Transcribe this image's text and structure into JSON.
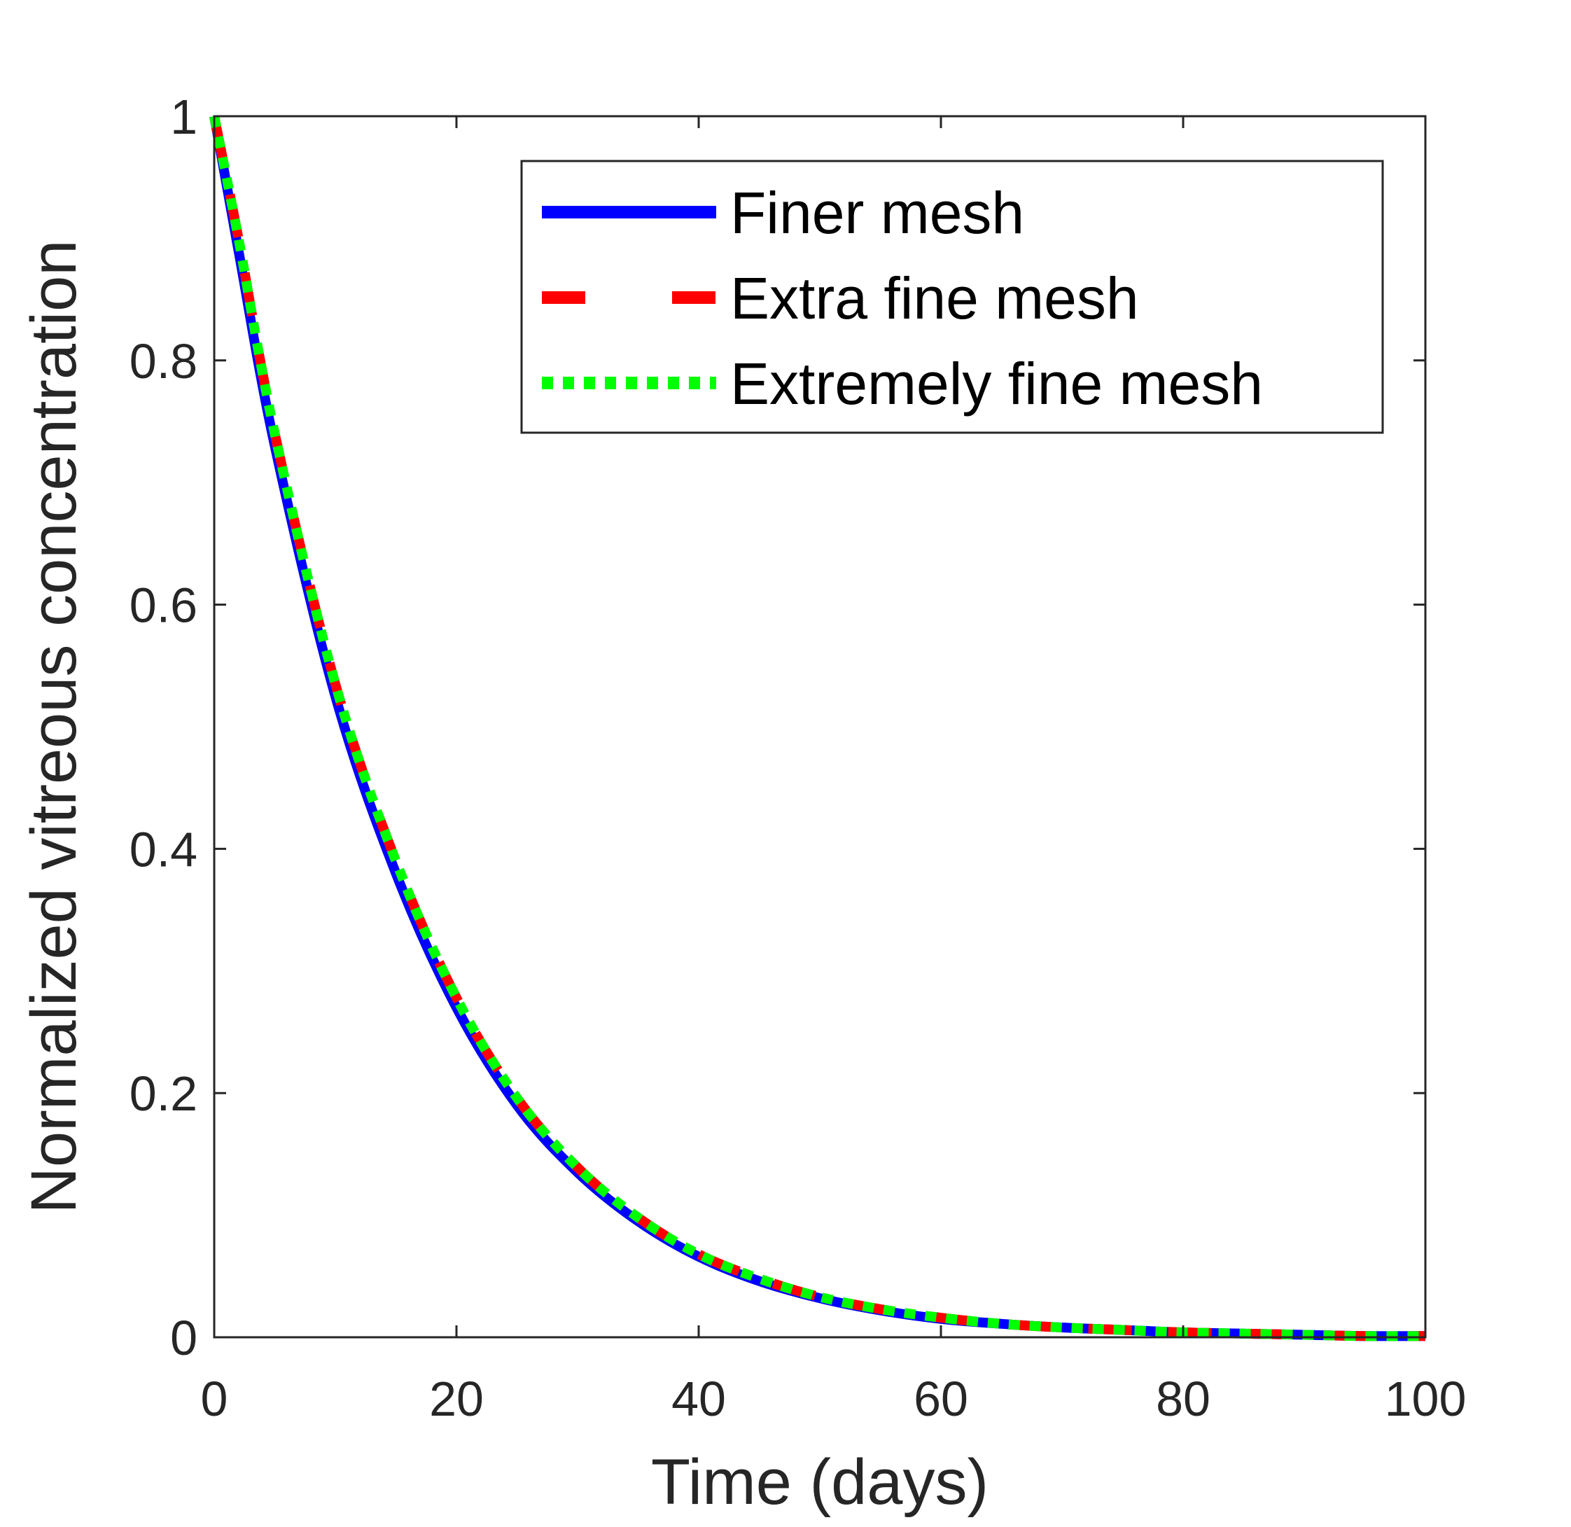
{
  "chart_data": {
    "type": "line",
    "title": "",
    "xlabel": "Time (days)",
    "ylabel": "Normalized vitreous concentration",
    "xlim": [
      0,
      100
    ],
    "ylim": [
      0,
      1
    ],
    "xticks": [
      0,
      20,
      40,
      60,
      80,
      100
    ],
    "yticks": [
      0,
      0.2,
      0.4,
      0.6,
      0.8,
      1
    ],
    "xtick_labels": [
      "0",
      "20",
      "40",
      "60",
      "80",
      "100"
    ],
    "ytick_labels": [
      "0",
      "0.2",
      "0.4",
      "0.6",
      "0.8",
      "1"
    ],
    "grid": false,
    "legend_position": "top-right",
    "x": [
      0,
      2,
      5,
      10,
      15,
      20,
      25,
      30,
      35,
      40,
      45,
      50,
      55,
      60,
      65,
      70,
      75,
      80,
      85,
      90,
      95,
      100
    ],
    "series": [
      {
        "name": "Finer mesh",
        "color": "#0000ff",
        "style": "solid",
        "values": [
          1.0,
          0.89,
          0.73,
          0.525,
          0.38,
          0.27,
          0.19,
          0.135,
          0.095,
          0.066,
          0.046,
          0.032,
          0.022,
          0.015,
          0.011,
          0.008,
          0.006,
          0.004,
          0.003,
          0.002,
          0.001,
          0.001
        ]
      },
      {
        "name": "Extra fine mesh",
        "color": "#ff0000",
        "style": "dashed",
        "values": [
          1.0,
          0.9,
          0.74,
          0.535,
          0.39,
          0.278,
          0.196,
          0.139,
          0.098,
          0.068,
          0.048,
          0.033,
          0.023,
          0.016,
          0.011,
          0.008,
          0.006,
          0.004,
          0.003,
          0.002,
          0.001,
          0.001
        ]
      },
      {
        "name": "Extremely fine mesh",
        "color": "#00ff00",
        "style": "dotted",
        "values": [
          1.0,
          0.9,
          0.74,
          0.535,
          0.39,
          0.278,
          0.196,
          0.139,
          0.098,
          0.068,
          0.048,
          0.033,
          0.023,
          0.016,
          0.011,
          0.008,
          0.006,
          0.004,
          0.003,
          0.002,
          0.001,
          0.001
        ]
      }
    ]
  }
}
